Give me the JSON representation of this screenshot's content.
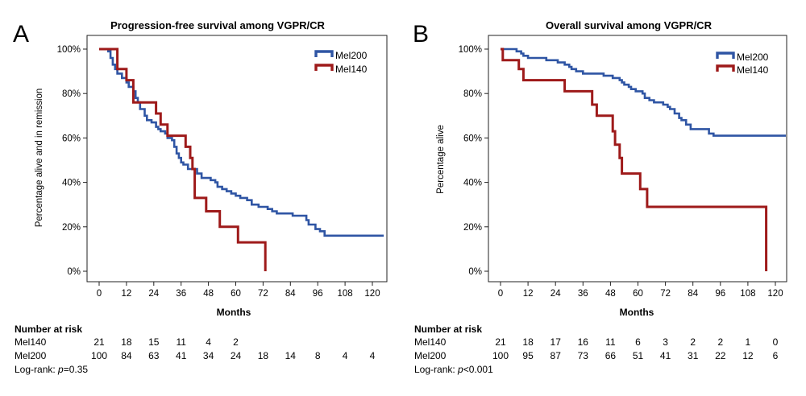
{
  "colors": {
    "mel200": "#2f55a4",
    "mel140": "#9e1a1a"
  },
  "chart_data": [
    {
      "type": "line",
      "panel_label": "A",
      "title": "Progression-free survival among VGPR/CR",
      "xlabel": "Months",
      "ylabel": "Percentage alive and in remission",
      "xlim": [
        0,
        120
      ],
      "ylim": [
        0,
        100
      ],
      "x_ticks": [
        "0",
        "12",
        "24",
        "36",
        "48",
        "60",
        "72",
        "84",
        "96",
        "108",
        "120"
      ],
      "y_ticks": [
        "0%",
        "20%",
        "40%",
        "60%",
        "80%",
        "100%"
      ],
      "legend": [
        "Mel200",
        "Mel140"
      ],
      "series": [
        {
          "name": "Mel200",
          "color": "mel200",
          "points": [
            [
              0,
              100
            ],
            [
              4,
              99
            ],
            [
              5,
              96
            ],
            [
              6,
              93
            ],
            [
              7,
              91
            ],
            [
              8,
              89
            ],
            [
              10,
              87
            ],
            [
              12,
              85
            ],
            [
              13,
              83
            ],
            [
              15,
              81
            ],
            [
              16,
              78
            ],
            [
              17,
              76
            ],
            [
              18,
              73
            ],
            [
              20,
              70
            ],
            [
              21,
              68
            ],
            [
              23,
              67
            ],
            [
              25,
              65
            ],
            [
              26,
              64
            ],
            [
              27,
              63
            ],
            [
              29,
              62
            ],
            [
              30,
              60
            ],
            [
              32,
              59
            ],
            [
              33,
              56
            ],
            [
              34,
              53
            ],
            [
              35,
              51
            ],
            [
              36,
              49
            ],
            [
              37,
              48
            ],
            [
              39,
              46
            ],
            [
              41,
              46
            ],
            [
              43,
              44
            ],
            [
              45,
              42
            ],
            [
              47,
              42
            ],
            [
              49,
              41
            ],
            [
              51,
              40
            ],
            [
              52,
              38
            ],
            [
              54,
              37
            ],
            [
              56,
              36
            ],
            [
              58,
              35
            ],
            [
              60,
              34
            ],
            [
              62,
              33
            ],
            [
              65,
              32
            ],
            [
              67,
              30
            ],
            [
              70,
              29
            ],
            [
              74,
              28
            ],
            [
              76,
              27
            ],
            [
              78,
              26
            ],
            [
              82,
              26
            ],
            [
              85,
              25
            ],
            [
              90,
              25
            ],
            [
              91,
              23
            ],
            [
              92,
              21
            ],
            [
              95,
              19
            ],
            [
              97,
              18
            ],
            [
              99,
              16
            ],
            [
              101,
              16
            ],
            [
              125,
              16
            ]
          ]
        },
        {
          "name": "Mel140",
          "color": "mel140",
          "points": [
            [
              0,
              100
            ],
            [
              8,
              100
            ],
            [
              8,
              91
            ],
            [
              12,
              91
            ],
            [
              12,
              86
            ],
            [
              15,
              86
            ],
            [
              15,
              76
            ],
            [
              25,
              76
            ],
            [
              25,
              71
            ],
            [
              27,
              71
            ],
            [
              27,
              66
            ],
            [
              30,
              66
            ],
            [
              30,
              61
            ],
            [
              38,
              61
            ],
            [
              38,
              56
            ],
            [
              40,
              56
            ],
            [
              40,
              51
            ],
            [
              41,
              51
            ],
            [
              41,
              46
            ],
            [
              42,
              46
            ],
            [
              42,
              33
            ],
            [
              47,
              33
            ],
            [
              47,
              27
            ],
            [
              53,
              27
            ],
            [
              53,
              20
            ],
            [
              61,
              20
            ],
            [
              61,
              13
            ],
            [
              73,
              13
            ],
            [
              73,
              0
            ]
          ]
        }
      ],
      "risk_table": {
        "header": "Number at risk",
        "rows": [
          {
            "label": "Mel140",
            "values": [
              "21",
              "18",
              "15",
              "11",
              "4",
              "2"
            ]
          },
          {
            "label": "Mel200",
            "values": [
              "100",
              "84",
              "63",
              "41",
              "34",
              "24",
              "18",
              "14",
              "8",
              "4",
              "4"
            ]
          }
        ],
        "logrank_prefix": "Log-rank: ",
        "logrank_p": "p",
        "logrank_value": "=0.35"
      }
    },
    {
      "type": "line",
      "panel_label": "B",
      "title": "Overall survival among VGPR/CR",
      "xlabel": "Months",
      "ylabel": "Percentage alive",
      "xlim": [
        0,
        120
      ],
      "ylim": [
        0,
        100
      ],
      "x_ticks": [
        "0",
        "12",
        "24",
        "36",
        "48",
        "60",
        "72",
        "84",
        "96",
        "108",
        "120"
      ],
      "y_ticks": [
        "0%",
        "20%",
        "40%",
        "60%",
        "80%",
        "100%"
      ],
      "legend": [
        "Mel200",
        "Mel140"
      ],
      "series": [
        {
          "name": "Mel200",
          "color": "mel200",
          "points": [
            [
              0,
              100
            ],
            [
              6,
              100
            ],
            [
              7,
              99
            ],
            [
              9,
              98
            ],
            [
              10,
              97
            ],
            [
              12,
              96
            ],
            [
              19,
              96
            ],
            [
              20,
              95
            ],
            [
              24,
              95
            ],
            [
              25,
              94
            ],
            [
              28,
              93
            ],
            [
              30,
              92
            ],
            [
              31,
              91
            ],
            [
              33,
              90
            ],
            [
              36,
              89
            ],
            [
              44,
              89
            ],
            [
              45,
              88
            ],
            [
              48,
              88
            ],
            [
              49,
              87
            ],
            [
              52,
              86
            ],
            [
              53,
              85
            ],
            [
              54,
              84
            ],
            [
              56,
              83
            ],
            [
              57,
              82
            ],
            [
              59,
              81
            ],
            [
              61,
              81
            ],
            [
              62,
              80
            ],
            [
              63,
              78
            ],
            [
              65,
              77
            ],
            [
              67,
              76
            ],
            [
              70,
              76
            ],
            [
              71,
              75
            ],
            [
              73,
              74
            ],
            [
              74,
              73
            ],
            [
              76,
              71
            ],
            [
              78,
              69
            ],
            [
              79,
              68
            ],
            [
              81,
              66
            ],
            [
              83,
              64
            ],
            [
              90,
              64
            ],
            [
              91,
              62
            ],
            [
              93,
              61
            ],
            [
              126,
              61
            ]
          ]
        },
        {
          "name": "Mel140",
          "color": "mel140",
          "points": [
            [
              0,
              100
            ],
            [
              1,
              100
            ],
            [
              1,
              95
            ],
            [
              8,
              95
            ],
            [
              8,
              91
            ],
            [
              10,
              91
            ],
            [
              10,
              86
            ],
            [
              28,
              86
            ],
            [
              28,
              81
            ],
            [
              40,
              81
            ],
            [
              40,
              75
            ],
            [
              42,
              75
            ],
            [
              42,
              70
            ],
            [
              49,
              70
            ],
            [
              49,
              63
            ],
            [
              50,
              63
            ],
            [
              50,
              57
            ],
            [
              52,
              57
            ],
            [
              52,
              51
            ],
            [
              53,
              51
            ],
            [
              53,
              44
            ],
            [
              61,
              44
            ],
            [
              61,
              37
            ],
            [
              64,
              37
            ],
            [
              64,
              29
            ],
            [
              116,
              29
            ],
            [
              116,
              0
            ]
          ]
        }
      ],
      "risk_table": {
        "header": "Number at risk",
        "rows": [
          {
            "label": "Mel140",
            "values": [
              "21",
              "18",
              "17",
              "16",
              "11",
              "6",
              "3",
              "2",
              "2",
              "1",
              "0"
            ]
          },
          {
            "label": "Mel200",
            "values": [
              "100",
              "95",
              "87",
              "73",
              "66",
              "51",
              "41",
              "31",
              "22",
              "12",
              "6"
            ]
          }
        ],
        "logrank_prefix": "Log-rank: ",
        "logrank_p": "p",
        "logrank_value": "<0.001"
      }
    }
  ]
}
